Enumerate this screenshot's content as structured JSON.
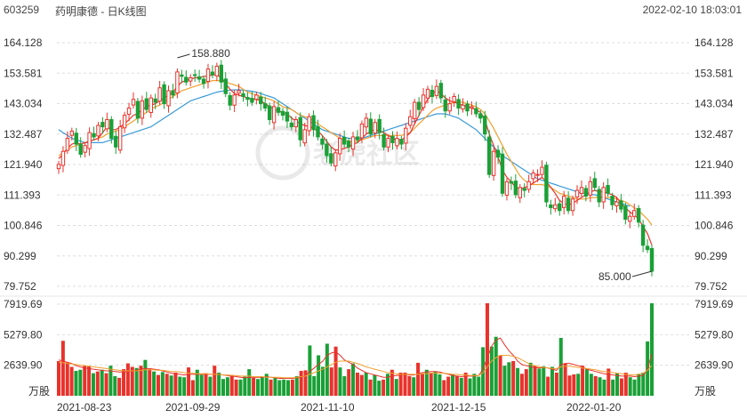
{
  "header": {
    "code": "603259",
    "name": "药明康德 - 日K线图",
    "datetime": "2022-02-10 18:03:01"
  },
  "watermark": "老虎社区",
  "colors": {
    "up": "#e8322b",
    "down": "#1aa036",
    "ma5": "#e8322b",
    "ma10": "#f0a030",
    "ma20": "#3a9ad9",
    "grid": "#dddddd"
  },
  "chart_data": [
    {
      "type": "candlestick",
      "price_ticks": [
        "164.128",
        "153.581",
        "143.034",
        "132.487",
        "121.940",
        "111.393",
        "100.846",
        "90.299",
        "79.752"
      ],
      "ylim": [
        79.752,
        164.128
      ],
      "x_ticks": [
        "2021-08-23",
        "2021-09-29",
        "2021-11-10",
        "2021-12-15",
        "2022-01-20"
      ],
      "annotations": {
        "high": "158.880",
        "low": "85.000"
      },
      "closes": [
        122.0,
        126.5,
        131.0,
        133.5,
        129.0,
        125.5,
        128.5,
        133.0,
        131.5,
        135.5,
        135.0,
        137.5,
        131.0,
        128.0,
        135.0,
        139.0,
        141.5,
        144.5,
        138.0,
        144.0,
        141.0,
        145.0,
        143.5,
        148.5,
        143.0,
        147.5,
        146.0,
        154.0,
        152.5,
        150.5,
        152.0,
        153.0,
        151.5,
        150.0,
        155.0,
        153.0,
        156.0,
        150.5,
        146.5,
        142.5,
        146.0,
        147.5,
        145.5,
        144.5,
        143.5,
        146.0,
        143.0,
        141.5,
        137.5,
        142.0,
        140.0,
        139.0,
        137.0,
        135.0,
        137.5,
        130.5,
        134.0,
        138.5,
        134.0,
        131.5,
        129.0,
        125.0,
        122.5,
        126.0,
        131.0,
        129.0,
        128.0,
        131.5,
        130.5,
        136.0,
        138.0,
        132.5,
        136.5,
        133.0,
        128.0,
        131.0,
        129.5,
        131.0,
        129.0,
        134.5,
        138.5,
        143.5,
        141.0,
        146.0,
        148.0,
        145.5,
        149.0,
        145.0,
        140.5,
        143.0,
        145.5,
        141.5,
        142.5,
        140.5,
        142.0,
        139.5,
        138.0,
        132.5,
        118.5,
        126.5,
        124.5,
        112.0,
        116.0,
        115.5,
        111.5,
        114.0,
        113.0,
        116.0,
        119.0,
        118.5,
        121.0,
        109.0,
        107.0,
        108.0,
        106.0,
        111.0,
        106.0,
        110.0,
        113.0,
        114.0,
        111.0,
        116.0,
        114.0,
        109.0,
        114.0,
        112.0,
        108.0,
        109.0,
        106.5,
        103.0,
        104.0,
        106.0,
        102.0,
        94.0,
        92.5,
        85.0
      ],
      "ma5": [
        124.0,
        125.5,
        127.5,
        129.0,
        129.5,
        129.0,
        129.5,
        130.0,
        130.5,
        131.0,
        133.0,
        135.0,
        134.0,
        134.0,
        135.0,
        136.0,
        137.5,
        139.0,
        139.5,
        141.0,
        142.0,
        142.5,
        143.0,
        144.0,
        145.0,
        146.0,
        147.0,
        149.0,
        150.5,
        151.0,
        151.5,
        152.0,
        152.0,
        152.5,
        152.5,
        153.0,
        153.0,
        152.0,
        150.0,
        148.0,
        146.5,
        146.0,
        145.5,
        145.0,
        144.5,
        144.5,
        144.0,
        143.0,
        142.0,
        141.0,
        140.5,
        140.0,
        139.5,
        138.0,
        137.0,
        136.0,
        135.5,
        135.0,
        134.5,
        133.5,
        132.0,
        130.0,
        128.0,
        127.0,
        127.0,
        127.5,
        128.0,
        129.0,
        129.5,
        131.0,
        132.5,
        133.5,
        134.0,
        133.5,
        133.0,
        132.0,
        131.0,
        130.5,
        130.5,
        131.5,
        133.0,
        136.0,
        139.0,
        142.0,
        144.5,
        146.5,
        147.5,
        146.5,
        145.0,
        144.0,
        143.5,
        143.0,
        142.5,
        142.0,
        141.5,
        141.0,
        140.0,
        137.5,
        132.5,
        128.5,
        124.5,
        120.0,
        117.5,
        116.0,
        114.0,
        113.5,
        114.0,
        114.5,
        115.5,
        116.5,
        117.5,
        116.0,
        114.0,
        112.0,
        109.5,
        108.5,
        108.0,
        108.5,
        109.5,
        110.5,
        111.5,
        112.5,
        113.0,
        112.5,
        112.5,
        112.0,
        111.5,
        110.5,
        108.5,
        107.0,
        105.5,
        104.5,
        103.0,
        100.5,
        98.0,
        94.0
      ],
      "ma10": [
        125.0,
        126.0,
        127.0,
        128.0,
        128.5,
        129.0,
        129.5,
        130.0,
        130.5,
        131.0,
        131.5,
        132.5,
        133.0,
        133.5,
        134.0,
        135.0,
        136.0,
        137.0,
        138.0,
        139.0,
        140.0,
        141.0,
        142.0,
        142.5,
        143.5,
        144.5,
        145.5,
        146.5,
        147.5,
        148.0,
        148.5,
        149.0,
        149.5,
        150.0,
        150.5,
        151.0,
        151.0,
        151.0,
        150.5,
        150.0,
        149.5,
        149.0,
        148.0,
        147.0,
        146.5,
        146.0,
        145.5,
        145.0,
        144.5,
        144.0,
        143.0,
        142.0,
        141.5,
        141.0,
        140.0,
        139.0,
        138.5,
        138.0,
        137.0,
        136.0,
        135.0,
        134.0,
        133.0,
        132.0,
        131.0,
        130.5,
        130.0,
        130.0,
        130.0,
        130.5,
        131.0,
        131.5,
        132.0,
        132.0,
        132.0,
        132.0,
        132.0,
        132.0,
        132.0,
        132.5,
        133.0,
        134.5,
        136.0,
        137.5,
        139.0,
        140.5,
        141.5,
        142.0,
        142.5,
        143.0,
        143.5,
        143.5,
        143.5,
        143.0,
        142.5,
        142.0,
        141.0,
        139.5,
        137.0,
        134.5,
        131.5,
        128.5,
        125.5,
        123.0,
        120.5,
        118.0,
        116.5,
        115.5,
        115.0,
        115.0,
        115.0,
        114.5,
        114.0,
        113.0,
        112.0,
        111.5,
        111.0,
        110.5,
        110.0,
        110.0,
        110.0,
        110.5,
        110.5,
        110.5,
        110.5,
        110.5,
        110.5,
        110.0,
        109.5,
        109.0,
        108.0,
        107.0,
        106.0,
        104.5,
        103.0,
        101.0
      ],
      "ma20": [
        134.0,
        133.0,
        132.0,
        131.0,
        130.5,
        130.0,
        129.5,
        129.5,
        129.5,
        129.5,
        129.5,
        130.0,
        130.5,
        131.0,
        131.5,
        132.0,
        132.5,
        133.0,
        133.5,
        134.0,
        134.5,
        135.0,
        136.0,
        137.0,
        138.0,
        139.0,
        140.0,
        141.0,
        142.0,
        143.0,
        144.0,
        144.5,
        145.0,
        145.5,
        146.0,
        146.5,
        147.0,
        147.3,
        147.5,
        147.7,
        147.8,
        147.8,
        147.7,
        147.5,
        147.3,
        147.0,
        146.5,
        146.0,
        145.5,
        145.0,
        144.0,
        143.0,
        142.0,
        141.0,
        140.0,
        139.0,
        138.0,
        137.0,
        136.0,
        135.0,
        134.0,
        133.5,
        133.0,
        132.5,
        132.0,
        131.5,
        131.0,
        131.0,
        131.0,
        131.0,
        131.5,
        132.0,
        132.5,
        133.0,
        133.5,
        134.0,
        134.5,
        135.0,
        135.5,
        136.0,
        136.5,
        137.0,
        137.5,
        138.0,
        138.5,
        139.0,
        139.5,
        139.5,
        139.5,
        139.0,
        138.5,
        138.0,
        137.0,
        136.0,
        135.0,
        134.0,
        132.5,
        131.0,
        129.5,
        128.0,
        126.5,
        125.0,
        124.0,
        123.0,
        122.0,
        121.0,
        120.0,
        119.0,
        118.0,
        117.0,
        116.5,
        116.0,
        115.5,
        115.0,
        114.5,
        114.0,
        113.5,
        113.0,
        112.5,
        112.0,
        112.0,
        111.5,
        111.5,
        111.0,
        110.5,
        110.0,
        109.5,
        109.0,
        108.5,
        108.0,
        107.5
      ]
    },
    {
      "type": "bar",
      "unit": "万股",
      "volume_ticks": [
        "7919.69",
        "5279.80",
        "2639.90"
      ],
      "ylim": [
        0,
        7919.69
      ],
      "values": [
        3000,
        4750,
        2900,
        2500,
        2150,
        2250,
        2600,
        2550,
        1950,
        2100,
        2250,
        1950,
        2600,
        1700,
        1550,
        2300,
        2800,
        2500,
        2400,
        2600,
        3100,
        2300,
        2100,
        1800,
        2050,
        1900,
        1750,
        2000,
        1650,
        1600,
        2450,
        1350,
        2250,
        1800,
        1950,
        1650,
        2600,
        2000,
        1450,
        1600,
        1800,
        1400,
        1400,
        1650,
        2300,
        1550,
        1450,
        1600,
        1900,
        1400,
        1550,
        1350,
        1400,
        1350,
        1400,
        1700,
        2150,
        2200,
        4350,
        1700,
        3500,
        2500,
        4500,
        2450,
        4250,
        2450,
        1700,
        2300,
        2800,
        2000,
        1800,
        2000,
        1400,
        1800,
        1300,
        1400,
        1900,
        2250,
        1450,
        2000,
        2000,
        1700,
        1600,
        2850,
        1900,
        2250,
        2000,
        2100,
        1850,
        1350,
        1650,
        1850,
        1700,
        1550,
        2000,
        1500,
        1900,
        1650,
        4200,
        8000,
        4250,
        5100,
        3500,
        2600,
        2900,
        3000,
        2400,
        1900,
        2300,
        2850,
        2600,
        2350,
        2550,
        1650,
        2500,
        2000,
        5000,
        2800,
        1750,
        1850,
        1900,
        2600,
        2300,
        1900,
        1700,
        1600,
        1400,
        2350,
        1400,
        1950,
        1500,
        2000,
        1600,
        1400,
        1900,
        2000,
        4700,
        8000
      ],
      "ma5": [
        3100,
        3000,
        2900,
        2800,
        2600,
        2500,
        2400,
        2350,
        2300,
        2250,
        2200,
        2150,
        2150,
        2100,
        2050,
        2050,
        2100,
        2150,
        2200,
        2300,
        2350,
        2350,
        2300,
        2250,
        2150,
        2050,
        1950,
        1900,
        1850,
        1800,
        1850,
        1850,
        1850,
        1850,
        1850,
        1850,
        1850,
        1850,
        1800,
        1750,
        1700,
        1650,
        1600,
        1550,
        1600,
        1600,
        1600,
        1600,
        1650,
        1600,
        1550,
        1500,
        1500,
        1500,
        1500,
        1550,
        1600,
        1750,
        2100,
        2400,
        2700,
        3000,
        3500,
        3700,
        3800,
        3500,
        3100,
        2900,
        2700,
        2400,
        2200,
        2000,
        1900,
        1800,
        1700,
        1600,
        1600,
        1700,
        1750,
        1800,
        1850,
        1800,
        1800,
        1900,
        2000,
        2050,
        2100,
        2100,
        2050,
        1950,
        1850,
        1750,
        1700,
        1650,
        1700,
        1700,
        1700,
        1750,
        2300,
        3300,
        4300,
        4800,
        5000,
        4400,
        3900,
        3500,
        3000,
        2700,
        2600,
        2500,
        2450,
        2400,
        2450,
        2400,
        2300,
        2200,
        2700,
        2800,
        2800,
        2700,
        2600,
        2500,
        2300,
        2200,
        2100,
        2000,
        1900,
        1850,
        1800,
        1750,
        1700,
        1700,
        1700,
        1650,
        1700,
        1750,
        2300,
        3600
      ],
      "ma10": [
        2900,
        2850,
        2800,
        2750,
        2700,
        2650,
        2600,
        2550,
        2500,
        2450,
        2400,
        2350,
        2300,
        2250,
        2200,
        2150,
        2150,
        2150,
        2150,
        2200,
        2250,
        2250,
        2250,
        2200,
        2200,
        2150,
        2100,
        2100,
        2050,
        2000,
        1950,
        1950,
        1900,
        1900,
        1900,
        1850,
        1850,
        1850,
        1800,
        1800,
        1750,
        1750,
        1700,
        1700,
        1700,
        1650,
        1650,
        1650,
        1600,
        1600,
        1600,
        1600,
        1550,
        1550,
        1550,
        1600,
        1650,
        1700,
        1850,
        2000,
        2150,
        2300,
        2500,
        2700,
        2900,
        3000,
        3000,
        3000,
        2900,
        2800,
        2650,
        2500,
        2400,
        2300,
        2200,
        2100,
        2000,
        1950,
        1900,
        1850,
        1850,
        1850,
        1850,
        1850,
        1900,
        1900,
        1950,
        1950,
        1950,
        1950,
        1900,
        1850,
        1850,
        1800,
        1800,
        1750,
        1750,
        1750,
        2000,
        2500,
        3000,
        3300,
        3500,
        3500,
        3500,
        3400,
        3300,
        3100,
        2900,
        2700,
        2600,
        2500,
        2450,
        2400,
        2350,
        2350,
        2500,
        2550,
        2550,
        2500,
        2450,
        2400,
        2350,
        2300,
        2250,
        2150,
        2100,
        2050,
        2000,
        1950,
        1900,
        1850,
        1800,
        1800,
        1850,
        1950,
        2200,
        2600
      ]
    }
  ]
}
